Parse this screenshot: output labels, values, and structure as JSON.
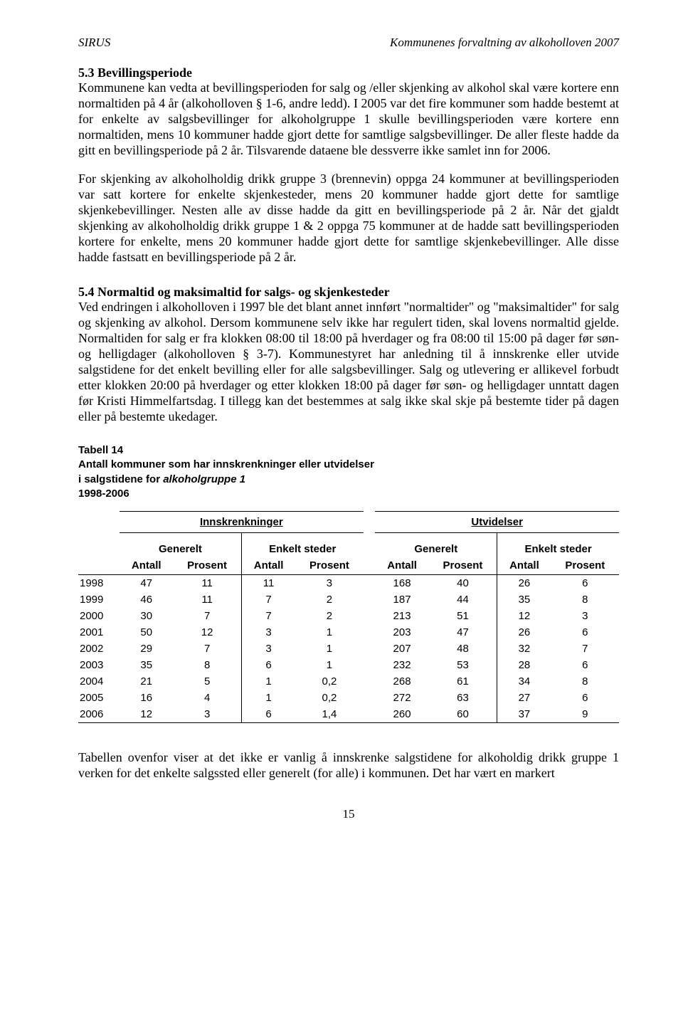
{
  "header": {
    "left": "SIRUS",
    "right": "Kommunenes forvaltning av alkoholloven 2007"
  },
  "s53": {
    "title": "5.3 Bevillingsperiode",
    "p1": "Kommunene kan vedta at bevillingsperioden for salg og /eller skjenking av alkohol skal være kortere enn normaltiden på 4 år (alkoholloven § 1-6, andre ledd). I 2005 var det fire kommuner som hadde bestemt at for enkelte av salgsbevillinger for alkoholgruppe 1 skulle bevillingsperioden være kortere enn normaltiden, mens 10 kommuner hadde gjort dette for samtlige salgsbevillinger. De aller fleste hadde da gitt en bevillingsperiode på 2 år. Tilsvarende dataene ble dessverre ikke samlet inn for 2006.",
    "p2": "For skjenking av alkoholholdig drikk gruppe 3 (brennevin) oppga 24 kommuner at bevillingsperioden var satt kortere for enkelte skjenkesteder, mens 20 kommuner hadde gjort dette for samtlige skjenkebevillinger. Nesten alle av disse hadde da gitt en bevillingsperiode på 2 år. Når det gjaldt skjenking av alkoholholdig drikk gruppe 1 & 2 oppga 75 kommuner at de hadde satt bevillingsperioden kortere for enkelte, mens 20 kommuner hadde gjort dette for samtlige skjenkebevillinger. Alle disse hadde fastsatt en bevillingsperiode på 2 år."
  },
  "s54": {
    "title": "5.4 Normaltid og maksimaltid for salgs- og skjenkesteder",
    "p1": " Ved endringen i alkoholloven i 1997 ble det blant annet innført \"normaltider\" og \"maksimaltider\" for salg og skjenking av alkohol. Dersom kommunene selv ikke har regulert tiden, skal lovens normaltid gjelde. Normaltiden for salg er fra klokken 08:00 til 18:00 på hverdager og fra 08:00 til 15:00 på dager før søn- og helligdager (alkoholloven § 3-7). Kommunestyret har anledning til å innskrenke eller utvide salgstidene for det enkelt bevilling eller for alle salgsbevillinger. Salg og utlevering er allikevel forbudt etter klokken 20:00 på hverdager og etter klokken 18:00 på dager før søn- og helligdager unntatt dagen før Kristi Himmelfartsdag. I tillegg kan det bestemmes at salg ikke skal skje på bestemte tider på dagen eller på bestemte ukedager."
  },
  "table14": {
    "title_l1": "Tabell 14",
    "title_l2": "Antall kommuner som har innskrenkninger eller utvidelser",
    "title_l3": "i salgstidene for ",
    "title_l3_em": "alkoholgruppe 1",
    "title_l4": "1998-2006",
    "group_left": "Innskrenkninger",
    "group_right": "Utvidelser",
    "sub_gen": "Generelt",
    "sub_enk": "Enkelt steder",
    "col_antall": "Antall",
    "col_prosent": "Prosent",
    "rows": [
      {
        "year": "1998",
        "a1": "47",
        "p1": "11",
        "a2": "11",
        "p2": "3",
        "a3": "168",
        "p3": "40",
        "a4": "26",
        "p4": "6"
      },
      {
        "year": "1999",
        "a1": "46",
        "p1": "11",
        "a2": "7",
        "p2": "2",
        "a3": "187",
        "p3": "44",
        "a4": "35",
        "p4": "8"
      },
      {
        "year": "2000",
        "a1": "30",
        "p1": "7",
        "a2": "7",
        "p2": "2",
        "a3": "213",
        "p3": "51",
        "a4": "12",
        "p4": "3"
      },
      {
        "year": "2001",
        "a1": "50",
        "p1": "12",
        "a2": "3",
        "p2": "1",
        "a3": "203",
        "p3": "47",
        "a4": "26",
        "p4": "6"
      },
      {
        "year": "2002",
        "a1": "29",
        "p1": "7",
        "a2": "3",
        "p2": "1",
        "a3": "207",
        "p3": "48",
        "a4": "32",
        "p4": "7"
      },
      {
        "year": "2003",
        "a1": "35",
        "p1": "8",
        "a2": "6",
        "p2": "1",
        "a3": "232",
        "p3": "53",
        "a4": "28",
        "p4": "6"
      },
      {
        "year": "2004",
        "a1": "21",
        "p1": "5",
        "a2": "1",
        "p2": "0,2",
        "a3": "268",
        "p3": "61",
        "a4": "34",
        "p4": "8"
      },
      {
        "year": "2005",
        "a1": "16",
        "p1": "4",
        "a2": "1",
        "p2": "0,2",
        "a3": "272",
        "p3": "63",
        "a4": "27",
        "p4": "6"
      },
      {
        "year": "2006",
        "a1": "12",
        "p1": "3",
        "a2": "6",
        "p2": "1,4",
        "a3": "260",
        "p3": "60",
        "a4": "37",
        "p4": "9"
      }
    ]
  },
  "tail_para": "Tabellen ovenfor viser at det ikke er vanlig å innskrenke salgstidene for alkoholdig drikk gruppe 1 verken for det enkelte salgssted eller generelt (for alle) i kommunen. Det har vært en markert",
  "page_number": "15"
}
